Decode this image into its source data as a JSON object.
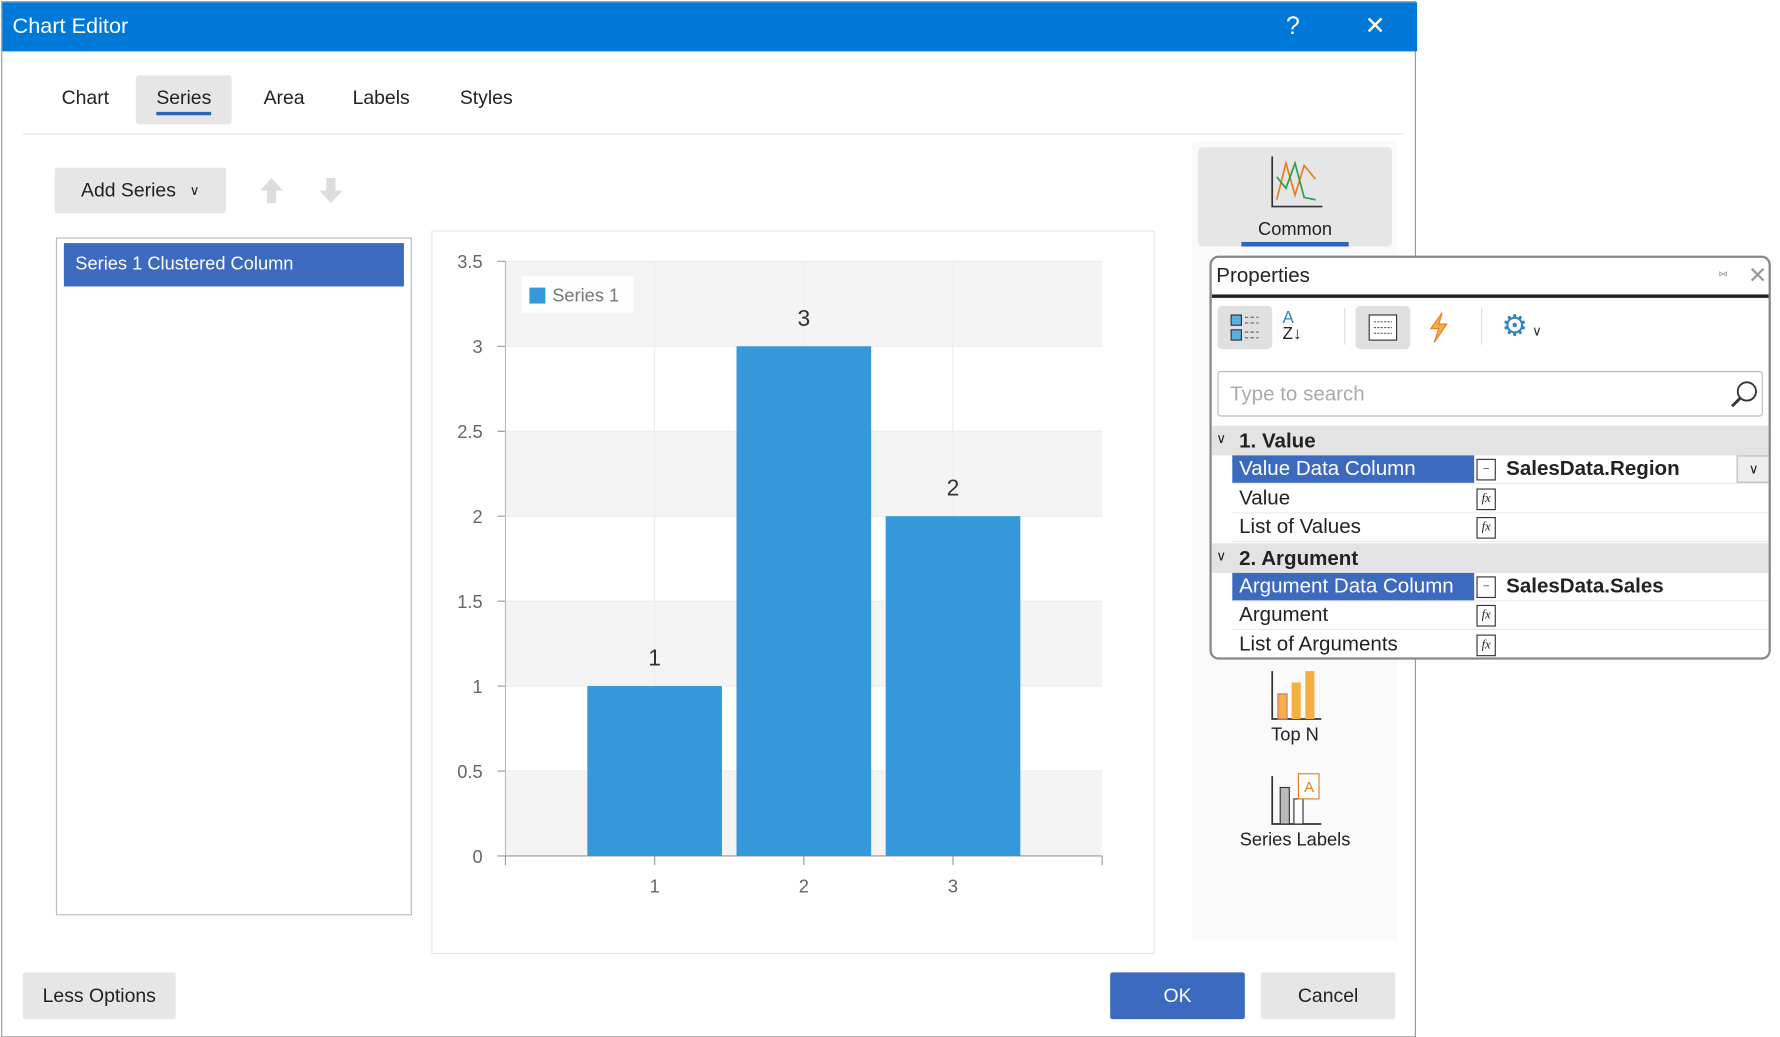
{
  "window": {
    "title": "Chart Editor",
    "help": "?",
    "close": "✕"
  },
  "tabs": [
    {
      "label": "Chart"
    },
    {
      "label": "Series",
      "active": true
    },
    {
      "label": "Area"
    },
    {
      "label": "Labels"
    },
    {
      "label": "Styles"
    }
  ],
  "toolbar": {
    "add_series": "Add Series"
  },
  "series_list": [
    "Series 1 Clustered Column"
  ],
  "chart_data": {
    "type": "bar",
    "categories": [
      "1",
      "2",
      "3"
    ],
    "series": [
      {
        "name": "Series 1",
        "values": [
          1,
          3,
          2
        ],
        "color": "#3498db"
      }
    ],
    "data_labels": [
      "1",
      "3",
      "2"
    ],
    "yticks": [
      "0",
      "0.5",
      "1",
      "1.5",
      "2",
      "2.5",
      "3",
      "3.5"
    ],
    "ylim": [
      0,
      3.5
    ],
    "legend": "top-left",
    "grid": true
  },
  "right_pane": {
    "common": "Common",
    "top_n": "Top N",
    "series_labels": "Series Labels"
  },
  "properties": {
    "title": "Properties",
    "search_placeholder": "Type to search",
    "groups": [
      {
        "label": "1. Value",
        "rows": [
          {
            "name": "Value Data Column",
            "value": "SalesData.Region"
          },
          {
            "name": "Value",
            "value": ""
          },
          {
            "name": "List of Values",
            "value": ""
          }
        ]
      },
      {
        "label": "2. Argument",
        "rows": [
          {
            "name": "Argument Data Column",
            "value": "SalesData.Sales"
          },
          {
            "name": "Argument",
            "value": ""
          },
          {
            "name": "List of Arguments",
            "value": ""
          }
        ]
      }
    ],
    "fx": "fx"
  },
  "footer": {
    "less_options": "Less Options",
    "ok": "OK",
    "cancel": "Cancel"
  },
  "colors": {
    "accent": "#0078d7",
    "selection": "#3b6abf",
    "bar": "#3498db"
  }
}
